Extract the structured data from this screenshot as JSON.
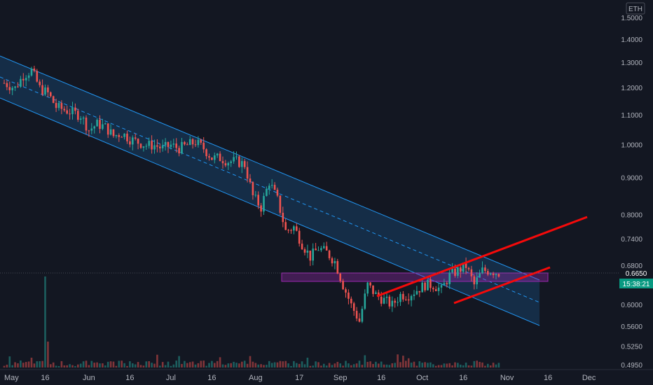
{
  "currency": "ETH",
  "current_price": "0.6650",
  "countdown": "15:38:21",
  "colors": {
    "background": "#131722",
    "up": "#26a69a",
    "down": "#ef5350",
    "channel": "#2196f3",
    "trendline": "#f50a0a",
    "zone": "#9c27b0",
    "axis_text": "#b2b5be"
  },
  "chart_data": {
    "type": "candlestick",
    "scale": "log",
    "grid": false,
    "y_ticks": [
      1.5,
      1.4,
      1.3,
      1.2,
      1.1,
      1.0,
      0.9,
      0.8,
      0.74,
      0.68,
      0.6,
      0.56,
      0.525,
      0.495
    ],
    "y_tick_labels": [
      "1.5000",
      "1.4000",
      "1.3000",
      "1.2000",
      "1.1000",
      "1.0000",
      "0.9000",
      "0.8000",
      "0.7400",
      "0.6800",
      "0.6000",
      "0.5600",
      "0.5250",
      "0.4950"
    ],
    "x_tick_labels": [
      "May",
      "16",
      "Jun",
      "16",
      "Jul",
      "16",
      "Aug",
      "17",
      "Sep",
      "16",
      "Oct",
      "16",
      "Nov",
      "16",
      "Dec"
    ],
    "x_tick_dates": [
      "2021-05-01",
      "2021-05-16",
      "2021-06-01",
      "2021-06-16",
      "2021-07-01",
      "2021-07-16",
      "2021-08-01",
      "2021-08-17",
      "2021-09-01",
      "2021-09-16",
      "2021-10-01",
      "2021-10-16",
      "2021-11-01",
      "2021-11-16",
      "2021-12-01"
    ],
    "close_series": [
      [
        "2021-05-01",
        1.22
      ],
      [
        "2021-05-05",
        1.2
      ],
      [
        "2021-05-08",
        1.25
      ],
      [
        "2021-05-11",
        1.27
      ],
      [
        "2021-05-14",
        1.2
      ],
      [
        "2021-05-17",
        1.18
      ],
      [
        "2021-05-20",
        1.13
      ],
      [
        "2021-05-23",
        1.12
      ],
      [
        "2021-05-26",
        1.11
      ],
      [
        "2021-05-29",
        1.1
      ],
      [
        "2021-06-01",
        1.05
      ],
      [
        "2021-06-04",
        1.07
      ],
      [
        "2021-06-07",
        1.06
      ],
      [
        "2021-06-10",
        1.03
      ],
      [
        "2021-06-13",
        1.04
      ],
      [
        "2021-06-16",
        1.02
      ],
      [
        "2021-06-19",
        1.01
      ],
      [
        "2021-06-22",
        1.0
      ],
      [
        "2021-06-25",
        1.0
      ],
      [
        "2021-06-28",
        0.99
      ],
      [
        "2021-07-01",
        1.0
      ],
      [
        "2021-07-04",
        0.99
      ],
      [
        "2021-07-07",
        1.0
      ],
      [
        "2021-07-10",
        1.01
      ],
      [
        "2021-07-13",
        0.99
      ],
      [
        "2021-07-16",
        0.96
      ],
      [
        "2021-07-19",
        0.96
      ],
      [
        "2021-07-22",
        0.95
      ],
      [
        "2021-07-25",
        0.95
      ],
      [
        "2021-07-28",
        0.94
      ],
      [
        "2021-07-31",
        0.85
      ],
      [
        "2021-08-03",
        0.82
      ],
      [
        "2021-08-06",
        0.89
      ],
      [
        "2021-08-09",
        0.84
      ],
      [
        "2021-08-12",
        0.76
      ],
      [
        "2021-08-15",
        0.77
      ],
      [
        "2021-08-18",
        0.73
      ],
      [
        "2021-08-21",
        0.7
      ],
      [
        "2021-08-24",
        0.72
      ],
      [
        "2021-08-27",
        0.71
      ],
      [
        "2021-08-30",
        0.69
      ],
      [
        "2021-09-02",
        0.64
      ],
      [
        "2021-09-05",
        0.6
      ],
      [
        "2021-09-08",
        0.57
      ],
      [
        "2021-09-11",
        0.64
      ],
      [
        "2021-09-14",
        0.62
      ],
      [
        "2021-09-17",
        0.61
      ],
      [
        "2021-09-20",
        0.6
      ],
      [
        "2021-09-23",
        0.62
      ],
      [
        "2021-09-26",
        0.62
      ],
      [
        "2021-09-29",
        0.63
      ],
      [
        "2021-10-02",
        0.64
      ],
      [
        "2021-10-05",
        0.64
      ],
      [
        "2021-10-08",
        0.63
      ],
      [
        "2021-10-11",
        0.66
      ],
      [
        "2021-10-14",
        0.67
      ],
      [
        "2021-10-17",
        0.68
      ],
      [
        "2021-10-20",
        0.64
      ],
      [
        "2021-10-23",
        0.67
      ],
      [
        "2021-10-26",
        0.67
      ],
      [
        "2021-10-29",
        0.665
      ]
    ],
    "volume_peaks": [
      {
        "date": "2021-05-16",
        "note": "largest volume bar"
      },
      {
        "date": "2021-05-17"
      }
    ],
    "annotations": {
      "descending_channel": {
        "upper_start": [
          "2021-05-01",
          1.33
        ],
        "upper_end": [
          "2021-11-01",
          0.655
        ],
        "lower_start": [
          "2021-05-01",
          1.15
        ],
        "lower_end": [
          "2021-11-01",
          0.56
        ],
        "midline": "dashed"
      },
      "support_zone": {
        "from": "2021-08-04",
        "to": "2021-11-02",
        "top": 0.67,
        "bottom": 0.655
      },
      "rising_trendlines": [
        {
          "start": [
            "2021-09-12",
            0.615
          ],
          "end": [
            "2021-11-26",
            0.795
          ]
        },
        {
          "start": [
            "2021-10-07",
            0.605
          ],
          "end": [
            "2021-11-04",
            0.68
          ]
        }
      ]
    }
  }
}
